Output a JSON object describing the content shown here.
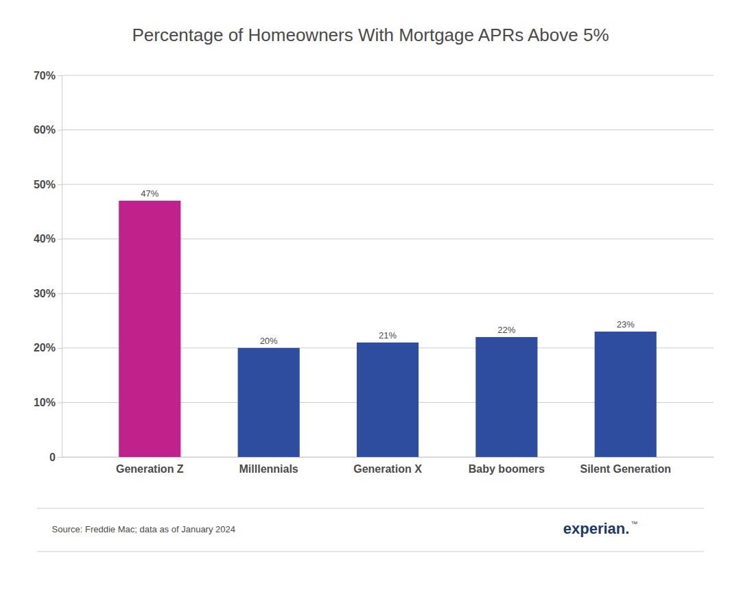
{
  "chart_data": {
    "type": "bar",
    "title": "Percentage of Homeowners With Mortgage APRs Above 5%",
    "categories": [
      "Generation Z",
      "Milllennials",
      "Generation X",
      "Baby boomers",
      "Silent Generation"
    ],
    "values": [
      47,
      20,
      21,
      22,
      23
    ],
    "value_labels": [
      "47%",
      "20%",
      "21%",
      "22%",
      "23%"
    ],
    "data_labels": true,
    "colors": [
      "#c0218a",
      "#2e4d9e",
      "#2e4d9e",
      "#2e4d9e",
      "#2e4d9e"
    ],
    "ylim": [
      0,
      70
    ],
    "yticks": [
      0,
      {
        "value": 10,
        "label": "10%"
      },
      {
        "value": 20,
        "label": "20%"
      },
      {
        "value": 30,
        "label": "30%"
      },
      {
        "value": 40,
        "label": "40%"
      },
      {
        "value": 50,
        "label": "50%"
      },
      {
        "value": 60,
        "label": "60%"
      },
      {
        "value": 70,
        "label": "70%"
      }
    ],
    "grid": true,
    "annotations": [
      "Source: Freddie Mac; data as of January 2024",
      "experian.",
      "™"
    ]
  }
}
